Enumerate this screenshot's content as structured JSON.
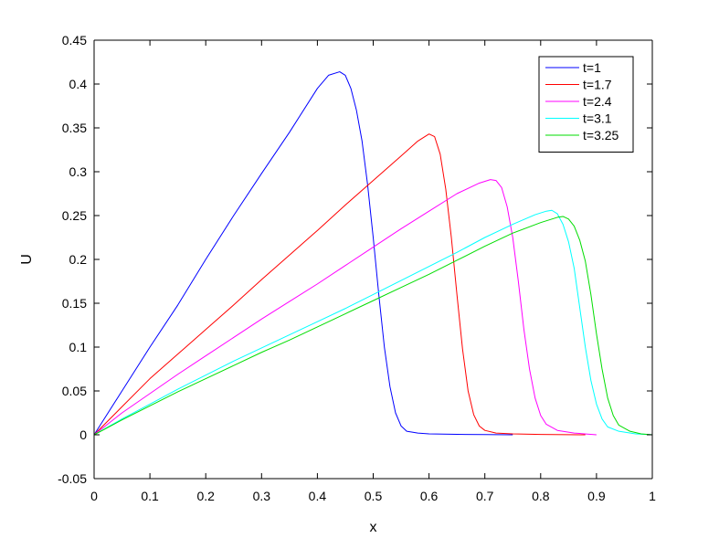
{
  "chart_data": {
    "type": "line",
    "title": "",
    "xlabel": "x",
    "ylabel": "U",
    "xlim": [
      0,
      1
    ],
    "ylim": [
      -0.05,
      0.45
    ],
    "xticks": [
      0,
      0.1,
      0.2,
      0.3,
      0.4,
      0.5,
      0.6,
      0.7,
      0.8,
      0.9,
      1
    ],
    "xtick_labels": [
      "0",
      "0.1",
      "0.2",
      "0.3",
      "0.4",
      "0.5",
      "0.6",
      "0.7",
      "0.8",
      "0.9",
      "1"
    ],
    "yticks": [
      -0.05,
      0,
      0.05,
      0.1,
      0.15,
      0.2,
      0.25,
      0.3,
      0.35,
      0.4,
      0.45
    ],
    "ytick_labels": [
      "-0.05",
      "0",
      "0.05",
      "0.1",
      "0.15",
      "0.2",
      "0.25",
      "0.3",
      "0.35",
      "0.4",
      "0.45"
    ],
    "grid": false,
    "legend_position": "top-right",
    "series": [
      {
        "name": "t=1",
        "color": "#0000ff",
        "x": [
          0,
          0.05,
          0.1,
          0.15,
          0.2,
          0.25,
          0.3,
          0.35,
          0.4,
          0.42,
          0.44,
          0.45,
          0.46,
          0.47,
          0.48,
          0.49,
          0.5,
          0.51,
          0.52,
          0.53,
          0.54,
          0.55,
          0.56,
          0.58,
          0.6,
          0.65,
          0.7,
          0.75
        ],
        "y": [
          0,
          0.05,
          0.1,
          0.148,
          0.2,
          0.25,
          0.298,
          0.345,
          0.395,
          0.41,
          0.414,
          0.41,
          0.395,
          0.37,
          0.335,
          0.285,
          0.225,
          0.16,
          0.1,
          0.055,
          0.025,
          0.01,
          0.004,
          0.002,
          0.001,
          0.0005,
          0.0002,
          0
        ]
      },
      {
        "name": "t=1.7",
        "color": "#ff0000",
        "x": [
          0,
          0.05,
          0.1,
          0.15,
          0.2,
          0.25,
          0.3,
          0.35,
          0.4,
          0.45,
          0.5,
          0.55,
          0.58,
          0.6,
          0.61,
          0.62,
          0.63,
          0.64,
          0.65,
          0.66,
          0.67,
          0.68,
          0.69,
          0.7,
          0.72,
          0.75,
          0.8,
          0.88
        ],
        "y": [
          0,
          0.032,
          0.064,
          0.092,
          0.12,
          0.148,
          0.177,
          0.205,
          0.233,
          0.262,
          0.29,
          0.318,
          0.335,
          0.343,
          0.34,
          0.32,
          0.28,
          0.225,
          0.16,
          0.098,
          0.05,
          0.023,
          0.01,
          0.005,
          0.002,
          0.001,
          0.0004,
          0
        ]
      },
      {
        "name": "t=2.4",
        "color": "#ff00ff",
        "x": [
          0,
          0.05,
          0.1,
          0.15,
          0.2,
          0.25,
          0.3,
          0.35,
          0.4,
          0.45,
          0.5,
          0.55,
          0.6,
          0.65,
          0.69,
          0.71,
          0.72,
          0.73,
          0.74,
          0.75,
          0.76,
          0.77,
          0.78,
          0.79,
          0.8,
          0.81,
          0.83,
          0.86,
          0.9
        ],
        "y": [
          0,
          0.025,
          0.047,
          0.069,
          0.09,
          0.111,
          0.132,
          0.152,
          0.172,
          0.193,
          0.214,
          0.235,
          0.255,
          0.275,
          0.287,
          0.291,
          0.29,
          0.282,
          0.26,
          0.225,
          0.175,
          0.12,
          0.075,
          0.042,
          0.022,
          0.012,
          0.005,
          0.002,
          0
        ]
      },
      {
        "name": "t=3.1",
        "color": "#00ffff",
        "x": [
          0,
          0.05,
          0.1,
          0.15,
          0.2,
          0.25,
          0.3,
          0.35,
          0.4,
          0.45,
          0.5,
          0.55,
          0.6,
          0.65,
          0.7,
          0.75,
          0.79,
          0.81,
          0.82,
          0.83,
          0.84,
          0.85,
          0.86,
          0.87,
          0.88,
          0.89,
          0.9,
          0.91,
          0.92,
          0.94,
          0.97,
          1
        ],
        "y": [
          0,
          0.018,
          0.035,
          0.052,
          0.068,
          0.084,
          0.099,
          0.114,
          0.129,
          0.144,
          0.16,
          0.176,
          0.192,
          0.208,
          0.225,
          0.24,
          0.251,
          0.255,
          0.256,
          0.252,
          0.24,
          0.22,
          0.19,
          0.145,
          0.1,
          0.062,
          0.035,
          0.018,
          0.009,
          0.004,
          0.001,
          0
        ]
      },
      {
        "name": "t=3.25",
        "color": "#00dd00",
        "x": [
          0,
          0.05,
          0.1,
          0.15,
          0.2,
          0.25,
          0.3,
          0.35,
          0.4,
          0.45,
          0.5,
          0.55,
          0.6,
          0.65,
          0.7,
          0.75,
          0.8,
          0.83,
          0.84,
          0.85,
          0.86,
          0.87,
          0.88,
          0.89,
          0.9,
          0.91,
          0.92,
          0.93,
          0.94,
          0.96,
          0.98,
          1
        ],
        "y": [
          0,
          0.017,
          0.033,
          0.049,
          0.064,
          0.079,
          0.094,
          0.108,
          0.123,
          0.138,
          0.153,
          0.168,
          0.183,
          0.199,
          0.215,
          0.23,
          0.242,
          0.248,
          0.249,
          0.246,
          0.238,
          0.222,
          0.198,
          0.16,
          0.115,
          0.075,
          0.042,
          0.022,
          0.011,
          0.004,
          0.001,
          0
        ]
      }
    ]
  }
}
